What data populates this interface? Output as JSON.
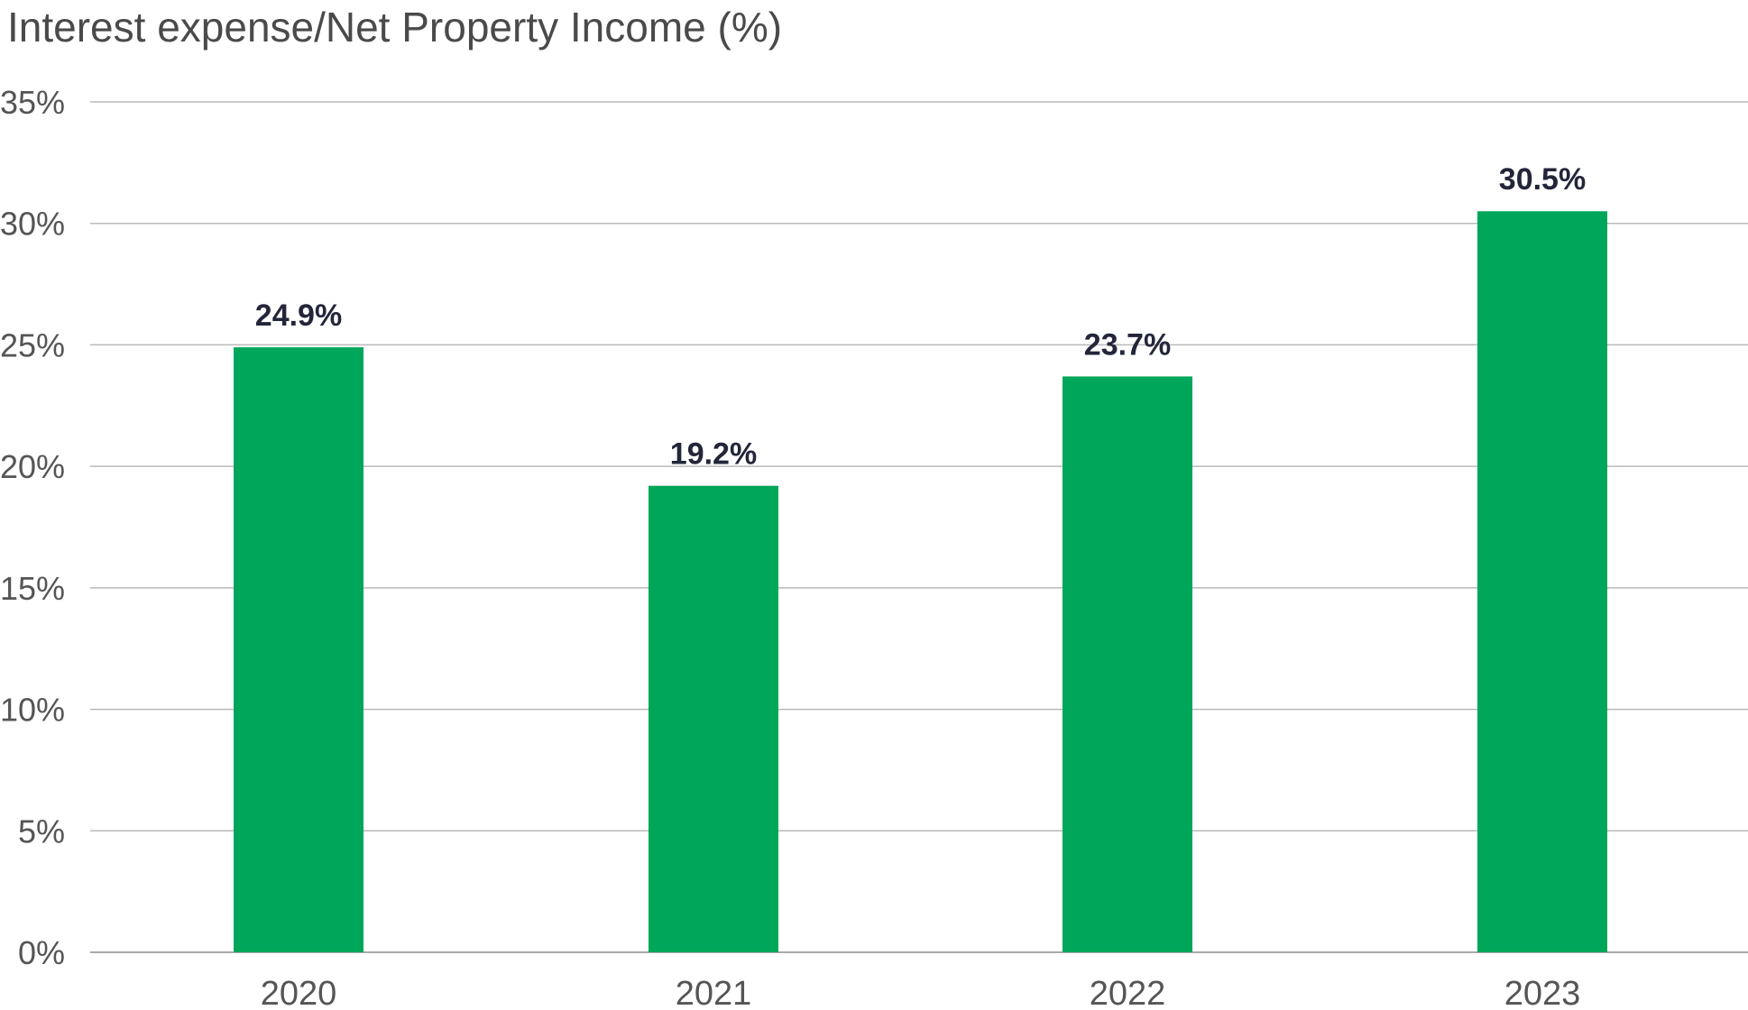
{
  "chart_data": {
    "type": "bar",
    "title": "Interest expense/Net Property Income (%)",
    "xlabel": "",
    "ylabel": "",
    "categories": [
      "2020",
      "2021",
      "2022",
      "2023"
    ],
    "values": [
      24.9,
      19.2,
      23.7,
      30.5
    ],
    "value_labels": [
      "24.9%",
      "19.2%",
      "23.7%",
      "30.5%"
    ],
    "ylim": [
      0,
      35
    ],
    "yticks": [
      0,
      5,
      10,
      15,
      20,
      25,
      30,
      35
    ],
    "ytick_labels": [
      "0%",
      "5%",
      "10%",
      "15%",
      "20%",
      "25%",
      "30%",
      "35%"
    ],
    "grid": true,
    "legend": "none",
    "bar_color": "#00a659"
  }
}
